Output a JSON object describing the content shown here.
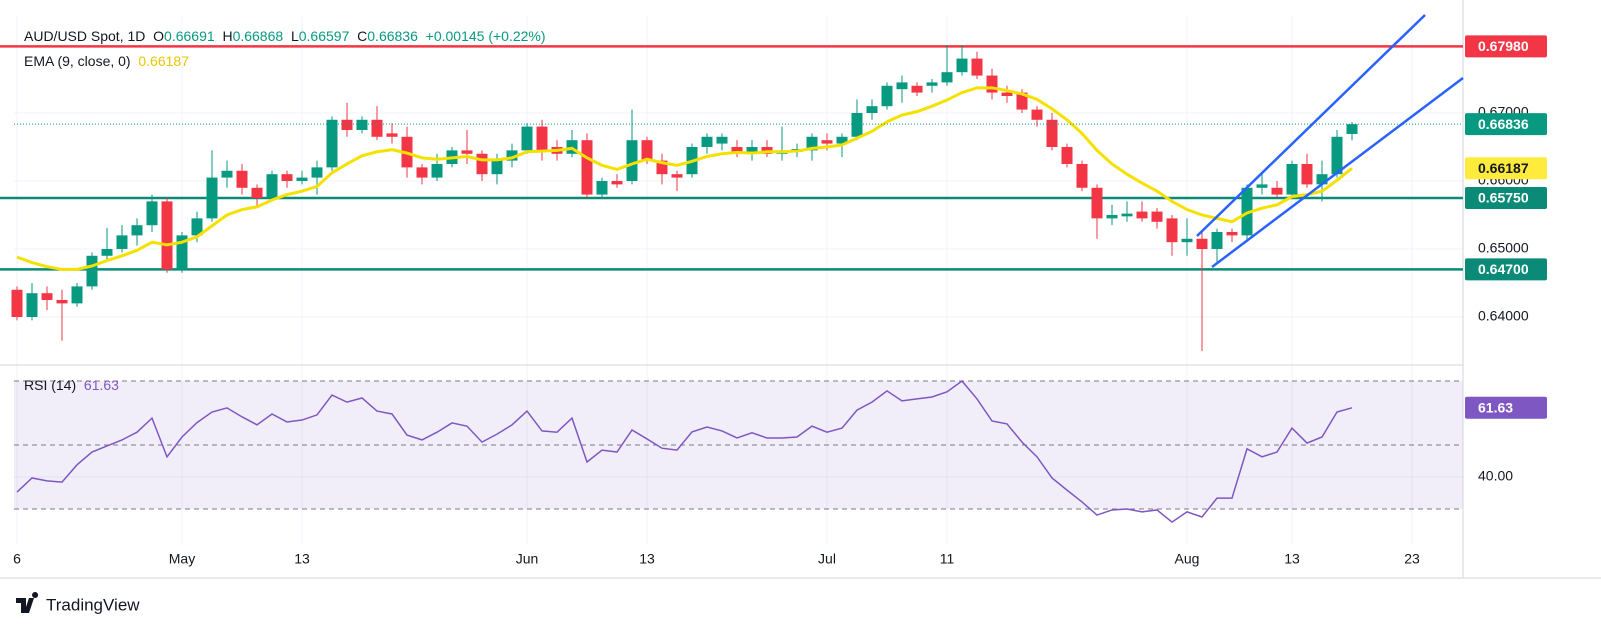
{
  "chart_data": [
    {
      "type": "candlestick",
      "title": "AUD/USD Spot, 1D",
      "ohlc": [
        {
          "key": "O",
          "value": "0.66691"
        },
        {
          "key": "H",
          "value": "0.66868"
        },
        {
          "key": "L",
          "value": "0.66597"
        },
        {
          "key": "C",
          "value": "0.66836"
        }
      ],
      "change": "+0.00145 (+0.22%)",
      "up_color": "#089981",
      "down_color": "#f23645",
      "open": [
        0.644,
        0.64,
        0.6435,
        0.6425,
        0.642,
        0.6445,
        0.649,
        0.65,
        0.652,
        0.6535,
        0.657,
        0.647,
        0.652,
        0.6545,
        0.6605,
        0.6615,
        0.659,
        0.6575,
        0.661,
        0.66,
        0.6605,
        0.662,
        0.669,
        0.6675,
        0.669,
        0.667,
        0.6665,
        0.662,
        0.6605,
        0.6625,
        0.6645,
        0.664,
        0.661,
        0.663,
        0.6645,
        0.668,
        0.665,
        0.664,
        0.666,
        0.658,
        0.66,
        0.66,
        0.666,
        0.663,
        0.661,
        0.661,
        0.665,
        0.6655,
        0.665,
        0.664,
        0.665,
        0.664,
        0.6643,
        0.6645,
        0.666,
        0.6655,
        0.6665,
        0.67,
        0.671,
        0.6735,
        0.674,
        0.674,
        0.6745,
        0.676,
        0.678,
        0.6755,
        0.673,
        0.673,
        0.6705,
        0.669,
        0.665,
        0.6625,
        0.659,
        0.6545,
        0.6548,
        0.6555,
        0.6555,
        0.6545,
        0.651,
        0.6515,
        0.65,
        0.6525,
        0.652,
        0.659,
        0.659,
        0.658,
        0.6625,
        0.6595,
        0.661,
        0.66691
      ],
      "high": [
        0.6445,
        0.645,
        0.6445,
        0.644,
        0.645,
        0.6495,
        0.6531,
        0.6535,
        0.6545,
        0.658,
        0.6575,
        0.6525,
        0.6555,
        0.6645,
        0.663,
        0.6625,
        0.6595,
        0.6615,
        0.6615,
        0.6615,
        0.663,
        0.6695,
        0.6715,
        0.6695,
        0.671,
        0.6685,
        0.668,
        0.6625,
        0.664,
        0.665,
        0.6675,
        0.6645,
        0.664,
        0.6655,
        0.6685,
        0.669,
        0.666,
        0.6675,
        0.667,
        0.6605,
        0.661,
        0.6705,
        0.6665,
        0.664,
        0.6615,
        0.6655,
        0.667,
        0.667,
        0.666,
        0.666,
        0.666,
        0.668,
        0.6655,
        0.667,
        0.667,
        0.667,
        0.672,
        0.672,
        0.6745,
        0.6755,
        0.6745,
        0.675,
        0.68,
        0.68,
        0.679,
        0.6765,
        0.674,
        0.6735,
        0.671,
        0.67,
        0.6655,
        0.663,
        0.6595,
        0.6565,
        0.657,
        0.657,
        0.656,
        0.655,
        0.6545,
        0.6525,
        0.653,
        0.653,
        0.6595,
        0.661,
        0.66,
        0.663,
        0.664,
        0.663,
        0.6675,
        0.66868
      ],
      "low": [
        0.6395,
        0.6395,
        0.641,
        0.6365,
        0.6415,
        0.644,
        0.6485,
        0.6495,
        0.6505,
        0.6525,
        0.6465,
        0.6465,
        0.651,
        0.654,
        0.659,
        0.658,
        0.656,
        0.657,
        0.659,
        0.6595,
        0.658,
        0.6615,
        0.6665,
        0.667,
        0.666,
        0.6655,
        0.6605,
        0.6595,
        0.66,
        0.662,
        0.6625,
        0.66,
        0.6595,
        0.662,
        0.664,
        0.663,
        0.663,
        0.6635,
        0.6575,
        0.6575,
        0.659,
        0.6595,
        0.6625,
        0.6595,
        0.6585,
        0.6605,
        0.664,
        0.6645,
        0.6635,
        0.663,
        0.6635,
        0.663,
        0.6635,
        0.663,
        0.6645,
        0.6635,
        0.666,
        0.669,
        0.6705,
        0.6715,
        0.6725,
        0.673,
        0.674,
        0.6755,
        0.675,
        0.672,
        0.6715,
        0.67,
        0.668,
        0.6645,
        0.662,
        0.6585,
        0.6515,
        0.6535,
        0.654,
        0.654,
        0.653,
        0.649,
        0.649,
        0.635,
        0.648,
        0.651,
        0.651,
        0.658,
        0.6575,
        0.6575,
        0.659,
        0.657,
        0.6605,
        0.66597
      ],
      "close": [
        0.64,
        0.6435,
        0.6425,
        0.642,
        0.6445,
        0.649,
        0.65,
        0.652,
        0.6535,
        0.657,
        0.647,
        0.652,
        0.6545,
        0.6605,
        0.6615,
        0.659,
        0.6575,
        0.661,
        0.66,
        0.6605,
        0.662,
        0.669,
        0.6675,
        0.669,
        0.6665,
        0.6665,
        0.662,
        0.6605,
        0.6625,
        0.6645,
        0.664,
        0.661,
        0.663,
        0.6645,
        0.668,
        0.6645,
        0.664,
        0.666,
        0.658,
        0.66,
        0.6595,
        0.666,
        0.663,
        0.661,
        0.6605,
        0.665,
        0.6665,
        0.6665,
        0.664,
        0.665,
        0.664,
        0.6645,
        0.6647,
        0.6665,
        0.6655,
        0.6665,
        0.67,
        0.671,
        0.674,
        0.6745,
        0.673,
        0.6745,
        0.676,
        0.678,
        0.6755,
        0.673,
        0.6725,
        0.6705,
        0.669,
        0.665,
        0.6625,
        0.659,
        0.6545,
        0.655,
        0.6552,
        0.6545,
        0.654,
        0.651,
        0.6515,
        0.65,
        0.6525,
        0.652,
        0.659,
        0.6595,
        0.658,
        0.6625,
        0.6595,
        0.661,
        0.6665,
        0.66836
      ],
      "last_label": "0.66836",
      "overlays": [
        {
          "name": "EMA (9, close, 0)",
          "color": "#f5e100",
          "last_label": "0.66187",
          "values": [
            0.6488,
            0.648,
            0.6474,
            0.647,
            0.647,
            0.6475,
            0.6483,
            0.649,
            0.6498,
            0.651,
            0.6506,
            0.651,
            0.6518,
            0.6534,
            0.655,
            0.6558,
            0.6562,
            0.6572,
            0.658,
            0.6585,
            0.6592,
            0.6612,
            0.6625,
            0.6637,
            0.6643,
            0.6646,
            0.6641,
            0.6634,
            0.6632,
            0.6634,
            0.6636,
            0.6631,
            0.6631,
            0.6634,
            0.6643,
            0.6644,
            0.6645,
            0.6648,
            0.6634,
            0.6623,
            0.6617,
            0.6625,
            0.6632,
            0.6627,
            0.6623,
            0.6629,
            0.6636,
            0.664,
            0.6642,
            0.6641,
            0.6643,
            0.6643,
            0.6644,
            0.6648,
            0.665,
            0.6653,
            0.6663,
            0.6673,
            0.6687,
            0.6697,
            0.6702,
            0.671,
            0.6719,
            0.673,
            0.6737,
            0.6737,
            0.6733,
            0.6728,
            0.672,
            0.6706,
            0.669,
            0.667,
            0.6645,
            0.6625,
            0.661,
            0.6597,
            0.6585,
            0.657,
            0.6558,
            0.655,
            0.6545,
            0.654,
            0.6553,
            0.656,
            0.6565,
            0.6577,
            0.658,
            0.6585,
            0.6601,
            0.66187
          ]
        }
      ],
      "levels": [
        {
          "value": 0.6798,
          "label": "0.67980",
          "color": "#f23645"
        },
        {
          "value": 0.6575,
          "label": "0.65750",
          "color": "#0b8a78"
        },
        {
          "value": 0.647,
          "label": "0.64700",
          "color": "#0b8a78"
        }
      ],
      "ylim": [
        0.63338,
        0.68441
      ],
      "yticks": [
        {
          "value": 0.64,
          "label": "0.64000"
        },
        {
          "value": 0.65,
          "label": "0.65000"
        },
        {
          "value": 0.66,
          "label": "0.66000"
        },
        {
          "value": 0.67,
          "label": "0.67000"
        }
      ],
      "xlim": [
        -0.2,
        96.4
      ],
      "xticks": [
        {
          "value": 0,
          "label": "6"
        },
        {
          "value": 11,
          "label": "May"
        },
        {
          "value": 19,
          "label": "13"
        },
        {
          "value": 34,
          "label": "Jun"
        },
        {
          "value": 42,
          "label": "13"
        },
        {
          "value": 54,
          "label": "Jul"
        },
        {
          "value": 62,
          "label": "11"
        },
        {
          "value": 78,
          "label": "Aug"
        },
        {
          "value": 85,
          "label": "13"
        },
        {
          "value": 93,
          "label": "23"
        }
      ],
      "grid": true
    },
    {
      "type": "line",
      "last_label": "61.63",
      "series": [
        {
          "name": "RSI (14)",
          "color": "#7e57c2",
          "values": [
            35.3,
            39.7,
            38.8,
            38.4,
            43.8,
            47.8,
            49.7,
            51.6,
            54,
            58.4,
            46.3,
            52.5,
            57,
            60.3,
            61.6,
            58.8,
            56.3,
            59.7,
            57.2,
            57.8,
            59.4,
            65.6,
            63.4,
            64.7,
            60.6,
            59.7,
            53.1,
            51.6,
            54,
            56.9,
            55.9,
            50.9,
            53.4,
            56.3,
            60.6,
            54.4,
            54,
            58.4,
            44.7,
            48.4,
            47.8,
            54.7,
            51.9,
            49,
            48.4,
            54.1,
            55.6,
            54.4,
            52.2,
            53.8,
            52.2,
            52.2,
            52.5,
            55.9,
            54,
            55.3,
            60.9,
            63.4,
            66.9,
            63.8,
            64.4,
            65,
            66.6,
            70,
            64.4,
            57.5,
            56.6,
            50.9,
            46.3,
            39.7,
            35.9,
            32.2,
            28.1,
            29.7,
            30,
            29.1,
            29.7,
            25.9,
            29.1,
            27.5,
            33.4,
            33.4,
            48.8,
            46.3,
            47.8,
            55.3,
            50.6,
            52.5,
            60.3,
            61.63
          ]
        }
      ],
      "band": [
        30,
        70
      ],
      "levels": [
        70,
        50,
        30
      ],
      "ylim": [
        18.75,
        73.44
      ],
      "yticks": [
        {
          "value": 40,
          "label": "40.00"
        }
      ]
    }
  ],
  "branding": "TradingView"
}
